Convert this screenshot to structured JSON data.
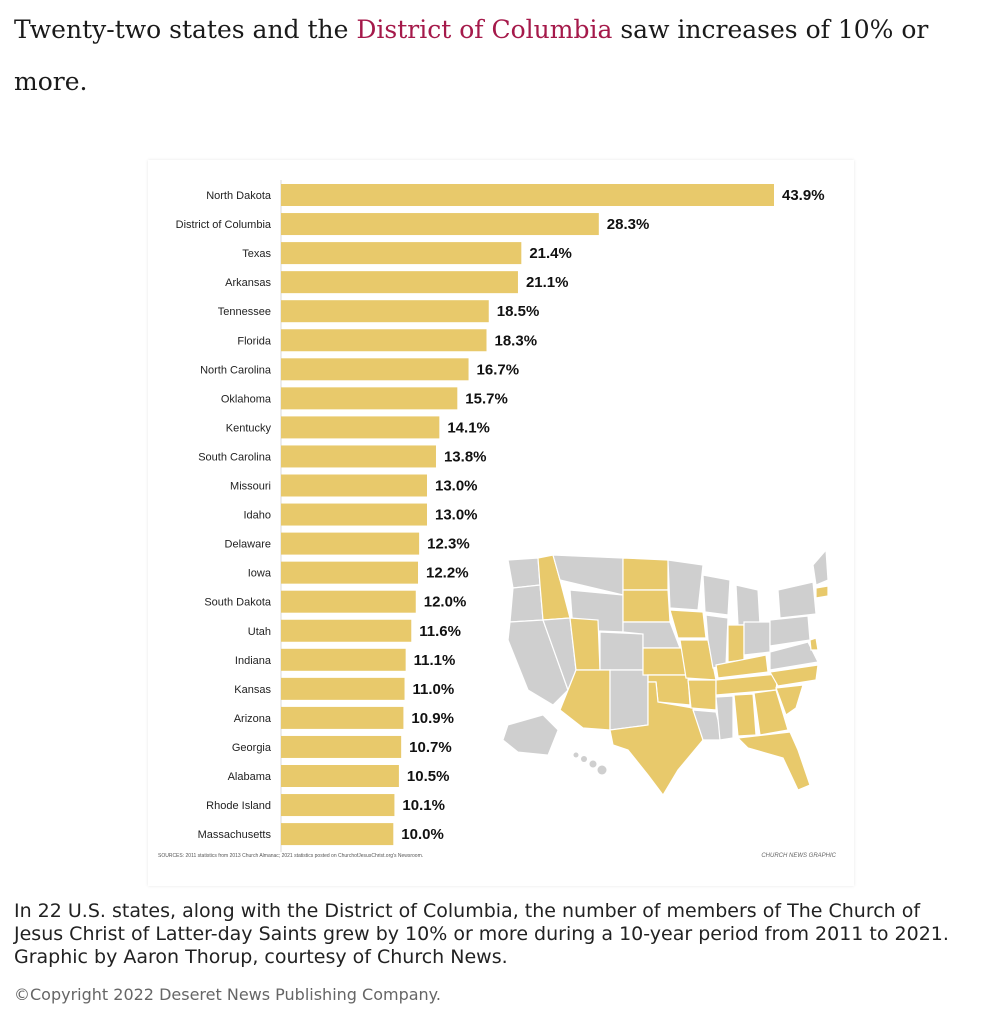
{
  "intro": {
    "before": "Twenty-two states and the ",
    "link": "District of Columbia",
    "after": " saw increases of 10% or more."
  },
  "colors": {
    "bar": "#e8c96b",
    "highlight_state": "#e8c96b",
    "other_state": "#cfcfcf",
    "link": "#a5194a"
  },
  "chart_data": {
    "type": "bar",
    "orientation": "horizontal",
    "categories": [
      "North Dakota",
      "District of Columbia",
      "Texas",
      "Arkansas",
      "Tennessee",
      "Florida",
      "North Carolina",
      "Oklahoma",
      "Kentucky",
      "South Carolina",
      "Missouri",
      "Idaho",
      "Delaware",
      "Iowa",
      "South Dakota",
      "Utah",
      "Indiana",
      "Kansas",
      "Arizona",
      "Georgia",
      "Alabama",
      "Rhode Island",
      "Massachusetts"
    ],
    "values": [
      43.9,
      28.3,
      21.4,
      21.1,
      18.5,
      18.3,
      16.7,
      15.7,
      14.1,
      13.8,
      13.0,
      13.0,
      12.3,
      12.2,
      12.0,
      11.6,
      11.1,
      11.0,
      10.9,
      10.7,
      10.5,
      10.1,
      10.0
    ],
    "value_labels": [
      "43.9%",
      "28.3%",
      "21.4%",
      "21.1%",
      "18.5%",
      "18.3%",
      "16.7%",
      "15.7%",
      "14.1%",
      "13.8%",
      "13.0%",
      "13.0%",
      "12.3%",
      "12.2%",
      "12.0%",
      "11.6%",
      "11.1%",
      "11.0%",
      "10.9%",
      "10.7%",
      "10.5%",
      "10.1%",
      "10.0%"
    ],
    "xlim": [
      0,
      43.9
    ],
    "grid": false,
    "sources": "SOURCES: 2011 statistics from 2013 Church Almanac; 2021 statistics posted on ChurchofJesusChrist.org's Newsroom.",
    "credit": "CHURCH NEWS GRAPHIC"
  },
  "caption": "In 22 U.S. states, along with the District of Columbia, the number of members of The Church of Jesus Christ of Latter-day Saints grew by 10% or more during a 10-year period from 2011 to 2021. Graphic by Aaron Thorup, courtesy of Church News.",
  "copyright": "©Copyright 2022 Deseret News Publishing Company."
}
